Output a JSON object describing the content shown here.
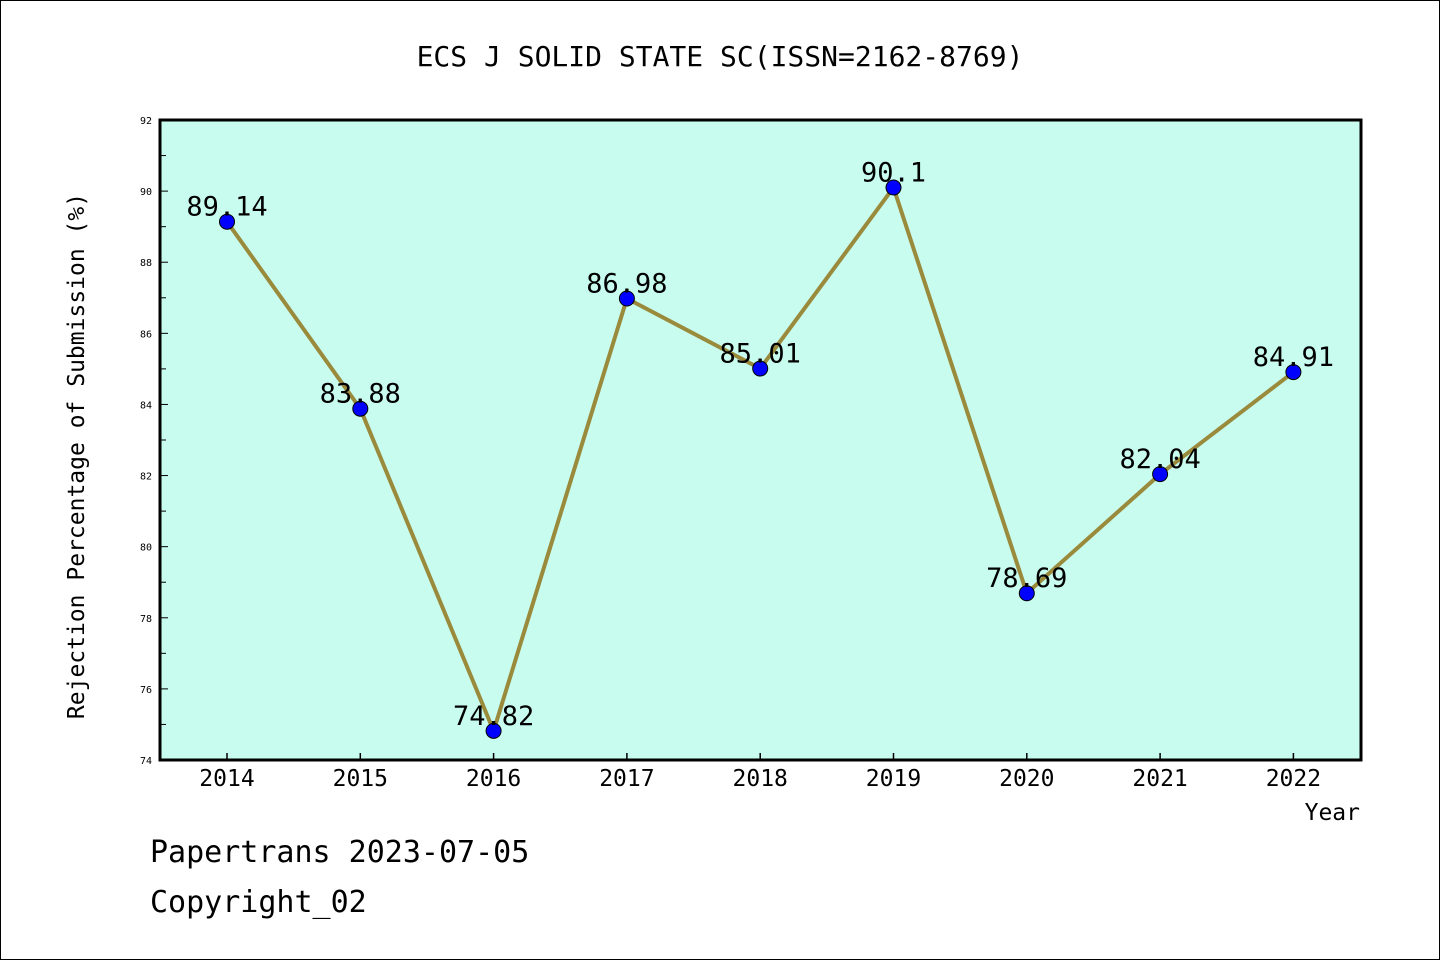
{
  "chart_data": {
    "type": "line",
    "title": "ECS J SOLID STATE SC(ISSN=2162-8769)",
    "xlabel": "Year",
    "ylabel": "Rejection Percentage of Submission (%)",
    "categories": [
      "2014",
      "2015",
      "2016",
      "2017",
      "2018",
      "2019",
      "2020",
      "2021",
      "2022"
    ],
    "values": [
      89.14,
      83.88,
      74.82,
      86.98,
      85.01,
      90.1,
      78.69,
      82.04,
      84.91
    ],
    "data_labels": [
      "89.14",
      "83.88",
      "74.82",
      "86.98",
      "85.01",
      "90.1",
      "78.69",
      "82.04",
      "84.91"
    ],
    "ylim": [
      74,
      92
    ],
    "yticks": [
      "74",
      "76",
      "78",
      "80",
      "82",
      "84",
      "86",
      "88",
      "90",
      "92"
    ],
    "grid": false,
    "colors": {
      "plot_background": "#c8fcee",
      "line": "#9a8a3c",
      "marker": "#0000ff"
    }
  },
  "footer": {
    "line1": "Papertrans 2023-07-05",
    "line2": "Copyright_02"
  }
}
